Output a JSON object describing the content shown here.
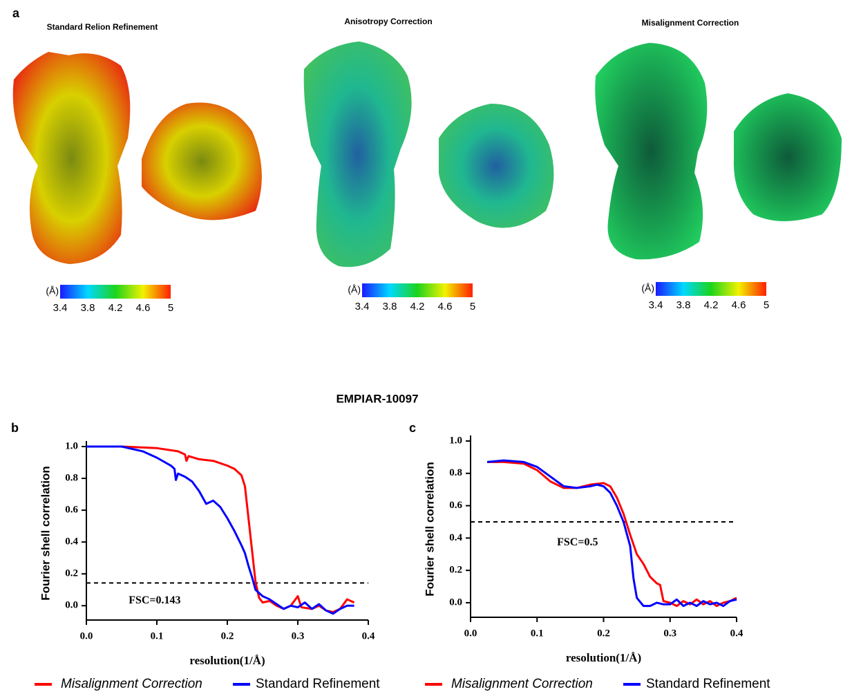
{
  "figure": {
    "panel_a": "a",
    "panel_b": "b",
    "panel_c": "c",
    "title": "EMPIAR-10097"
  },
  "maps": [
    {
      "title": "Standard Relion Refinement",
      "unit": "(Å)",
      "lim": [
        3.4,
        5
      ],
      "ticks": [
        3.4,
        3.8,
        4.2,
        4.6,
        5
      ]
    },
    {
      "title": "Anisotropy Correction",
      "unit": "(Å)",
      "lim": [
        3.4,
        5
      ],
      "ticks": [
        3.4,
        3.8,
        4.2,
        4.6,
        5
      ]
    },
    {
      "title": "Misalignment Correction",
      "unit": "(Å)",
      "lim": [
        3.4,
        5
      ],
      "ticks": [
        3.4,
        3.8,
        4.2,
        4.6,
        5
      ]
    }
  ],
  "chart_data": [
    {
      "type": "line",
      "xlabel": "resolution(1/Å)",
      "ylabel": "Fourier shell correlation",
      "xlim": [
        0,
        0.4
      ],
      "ylim": [
        -0.09,
        1.0
      ],
      "xticks": [
        {
          "value": 0,
          "label": "0.0"
        },
        0.1,
        0.2,
        0.3,
        0.4
      ],
      "yticks": [
        {
          "value": 0,
          "label": "0.0"
        },
        0.2,
        0.4,
        0.6,
        0.8,
        {
          "value": 1,
          "label": "1.0"
        }
      ],
      "threshold": {
        "value": 0.143,
        "label": "FSC=0.143"
      },
      "legend": "bottom",
      "series": [
        {
          "name": "Misalignment Correction",
          "color": "#ff0000",
          "x": [
            0,
            0.05,
            0.1,
            0.13,
            0.14,
            0.142,
            0.145,
            0.16,
            0.18,
            0.2,
            0.21,
            0.22,
            0.225,
            0.23,
            0.235,
            0.24,
            0.245,
            0.25,
            0.26,
            0.27,
            0.28,
            0.29,
            0.3,
            0.305,
            0.32,
            0.33,
            0.34,
            0.35,
            0.36,
            0.37,
            0.38
          ],
          "values": [
            1.0,
            1.0,
            0.99,
            0.97,
            0.95,
            0.91,
            0.94,
            0.92,
            0.91,
            0.88,
            0.86,
            0.82,
            0.75,
            0.55,
            0.35,
            0.15,
            0.05,
            0.02,
            0.03,
            0.0,
            -0.02,
            0.0,
            0.06,
            -0.01,
            -0.02,
            0.0,
            -0.03,
            -0.04,
            -0.02,
            0.04,
            0.02
          ]
        },
        {
          "name": "Standard Refinement",
          "color": "#0000ff",
          "x": [
            0,
            0.05,
            0.08,
            0.1,
            0.12,
            0.125,
            0.127,
            0.13,
            0.14,
            0.15,
            0.16,
            0.17,
            0.18,
            0.19,
            0.2,
            0.21,
            0.22,
            0.225,
            0.23,
            0.235,
            0.24,
            0.25,
            0.26,
            0.27,
            0.28,
            0.29,
            0.3,
            0.31,
            0.32,
            0.33,
            0.34,
            0.35,
            0.36,
            0.37,
            0.38
          ],
          "values": [
            1.0,
            1.0,
            0.97,
            0.93,
            0.88,
            0.86,
            0.79,
            0.83,
            0.81,
            0.78,
            0.72,
            0.64,
            0.66,
            0.62,
            0.55,
            0.47,
            0.38,
            0.33,
            0.25,
            0.18,
            0.1,
            0.06,
            0.04,
            0.01,
            -0.02,
            0.0,
            -0.01,
            0.02,
            -0.02,
            0.01,
            -0.03,
            -0.05,
            -0.02,
            0.0,
            0.0
          ]
        }
      ]
    },
    {
      "type": "line",
      "xlabel": "resolution(1/Å)",
      "ylabel": "Fourier shell correlation",
      "xlim": [
        0,
        0.4
      ],
      "ylim": [
        -0.09,
        1.0
      ],
      "xticks": [
        {
          "value": 0,
          "label": "0.0"
        },
        0.1,
        0.2,
        0.3,
        0.4
      ],
      "yticks": [
        {
          "value": 0,
          "label": "0.0"
        },
        0.2,
        0.4,
        0.6,
        0.8,
        {
          "value": 1,
          "label": "1.0"
        }
      ],
      "threshold": {
        "value": 0.5,
        "label": "FSC=0.5"
      },
      "legend": "bottom",
      "series": [
        {
          "name": "Misalignment Correction",
          "color": "#ff0000",
          "x": [
            0.025,
            0.05,
            0.08,
            0.1,
            0.12,
            0.14,
            0.16,
            0.18,
            0.2,
            0.21,
            0.22,
            0.23,
            0.24,
            0.25,
            0.26,
            0.27,
            0.28,
            0.285,
            0.29,
            0.3,
            0.31,
            0.32,
            0.33,
            0.34,
            0.35,
            0.36,
            0.37,
            0.38,
            0.39,
            0.4
          ],
          "values": [
            0.87,
            0.87,
            0.86,
            0.82,
            0.75,
            0.71,
            0.71,
            0.73,
            0.74,
            0.72,
            0.65,
            0.55,
            0.42,
            0.3,
            0.24,
            0.16,
            0.12,
            0.11,
            0.01,
            0.0,
            -0.02,
            0.01,
            -0.01,
            0.02,
            -0.01,
            0.01,
            -0.02,
            0.0,
            0.01,
            0.03
          ]
        },
        {
          "name": "Standard Refinement",
          "color": "#0000ff",
          "x": [
            0.025,
            0.05,
            0.08,
            0.1,
            0.12,
            0.14,
            0.16,
            0.18,
            0.19,
            0.2,
            0.21,
            0.22,
            0.23,
            0.24,
            0.245,
            0.25,
            0.26,
            0.27,
            0.28,
            0.29,
            0.3,
            0.31,
            0.32,
            0.33,
            0.34,
            0.35,
            0.36,
            0.37,
            0.38,
            0.39,
            0.4
          ],
          "values": [
            0.87,
            0.88,
            0.87,
            0.84,
            0.78,
            0.72,
            0.71,
            0.72,
            0.73,
            0.72,
            0.68,
            0.6,
            0.5,
            0.35,
            0.15,
            0.03,
            -0.02,
            -0.02,
            0.0,
            -0.01,
            -0.01,
            0.02,
            -0.02,
            0.0,
            -0.02,
            0.01,
            -0.01,
            0.0,
            -0.02,
            0.01,
            0.02
          ]
        }
      ]
    }
  ]
}
